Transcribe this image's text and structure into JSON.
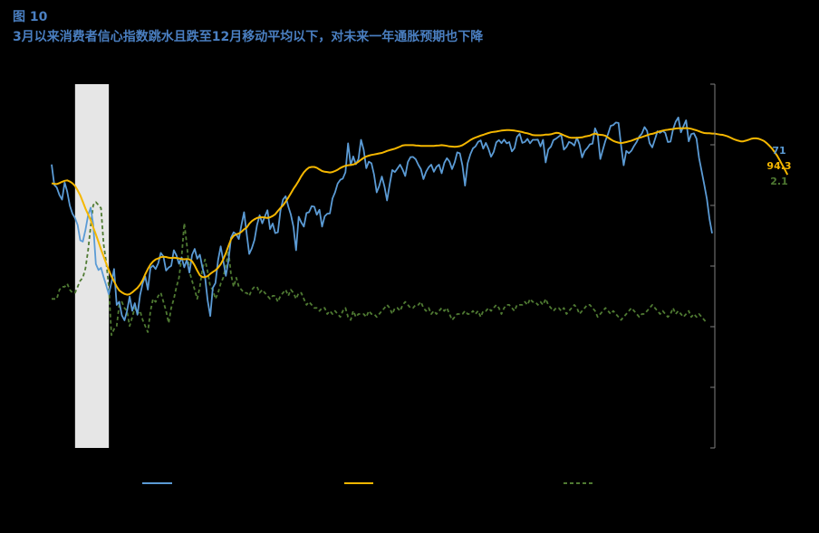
{
  "header": {
    "figure_label": "图 10",
    "title": "3月以来消费者信心指数跳水且跌至12月移动平均以下，对未来一年通胀预期也下降"
  },
  "colors": {
    "background": "#000000",
    "title": "#4a7fc1",
    "confidence": "#5b9bd5",
    "moving_avg": "#f5b700",
    "inflation": "#4f7a32",
    "shade": "#e6e6e6"
  },
  "chart_data": {
    "type": "line",
    "ylim": [
      20,
      130
    ],
    "y2lim": [
      -2,
      10
    ],
    "y_ticks_right": [
      71,
      94.3
    ],
    "y2_ticks_right": [
      2.1
    ],
    "legend_position": "bottom",
    "shaded_range": [
      9,
      22
    ],
    "series": [
      {
        "key": "confidence",
        "axis": "left",
        "end_label": "71",
        "values": [
          98.4,
          90.3,
          89.2,
          86.3,
          84.4,
          91.2,
          87.6,
          82.0,
          78.8,
          77.1,
          74.3,
          68.2,
          67.7,
          72.3,
          78.1,
          81.2,
          74.5,
          58.8,
          56.4,
          57.3,
          53.6,
          50.2,
          46.8,
          51.3,
          56.8,
          42.5,
          43.8,
          38.4,
          36.4,
          40.1,
          45.8,
          40.2,
          43.2,
          38.6,
          46.4,
          51.1,
          53.8,
          48.6,
          57.3,
          58.2,
          56.8,
          59.1,
          63.2,
          61.8,
          56.2,
          57.4,
          58.1,
          64.3,
          62.2,
          58.9,
          61.4,
          57.5,
          60.5,
          55.4,
          62.4,
          64.8,
          60.9,
          62.5,
          57.3,
          53.7,
          44.3,
          38.1,
          49.3,
          51.2,
          60.3,
          65.8,
          60.2,
          54.1,
          60.2,
          69.3,
          71.4,
          70.6,
          68.7,
          74.3,
          79.4,
          70.8,
          62.8,
          65.1,
          68.4,
          74.3,
          78.2,
          75.0,
          77.7,
          80.2,
          72.7,
          74.9,
          71.1,
          71.4,
          80.1,
          84.4,
          85.8,
          81.7,
          78.5,
          73.6,
          64.3,
          77.6,
          75.4,
          73.7,
          79.1,
          79.4,
          81.8,
          81.6,
          78.4,
          80.4,
          73.7,
          77.8,
          78.8,
          78.9,
          84.9,
          87.3,
          90.8,
          92.3,
          92.8,
          95.3,
          106.8,
          98.1,
          101.6,
          98.5,
          100.6,
          108.2,
          104.3,
          96.9,
          99.5,
          98.9,
          94.3,
          87.3,
          89.9,
          93.6,
          89.6,
          84.1,
          90.4,
          96.2,
          95.4,
          96.8,
          98.3,
          96.3,
          93.8,
          99.4,
          101.3,
          101.4,
          100.5,
          98.3,
          96.5,
          92.6,
          95.5,
          97.3,
          98.3,
          95.5,
          97.5,
          98.3,
          94.9,
          99.0,
          100.9,
          99.6,
          96.6,
          99.3,
          103.2,
          102.8,
          97.9,
          90.0,
          98.9,
          102.4,
          104.8,
          105.6,
          107.4,
          108.0,
          104.7,
          107.0,
          104.6,
          101.5,
          103.4,
          107.2,
          108.1,
          106.9,
          108.3,
          106.8,
          107.3,
          103.6,
          104.9,
          109.4,
          110.6,
          107.0,
          107.4,
          108.6,
          106.8,
          108.2,
          108.2,
          108.3,
          105.6,
          108.2,
          99.2,
          104.4,
          105.5,
          108.1,
          108.7,
          109.5,
          110.2,
          104.3,
          105.4,
          107.4,
          106.9,
          105.9,
          109.1,
          106.4,
          101.2,
          103.8,
          104.9,
          106.4,
          106.7,
          112.8,
          110.4,
          100.6,
          104.4,
          107.9,
          110.6,
          113.8,
          114.1,
          115.1,
          114.9,
          106.1,
          98.1,
          103.8,
          102.9,
          103.9,
          105.8,
          107.4,
          109.5,
          110.7,
          113.3,
          111.8,
          106.8,
          105.2,
          108.4,
          111.6,
          111.0,
          111.7,
          111.0,
          107.3,
          107.5,
          112.4,
          115.4,
          117.1,
          111.2,
          113.6,
          116.0,
          107.6,
          110.5,
          110.8,
          108.7,
          101.0,
          95.7,
          90.3,
          84.6,
          76.8,
          71.0
        ],
        "values_note_only": ""
      },
      {
        "key": "moving_avg",
        "axis": "left",
        "end_label": "94.3",
        "values": [
          90.9,
          90.7,
          90.6,
          91.0,
          91.5,
          91.9,
          92.1,
          91.6,
          90.9,
          89.9,
          88.1,
          86.1,
          83.6,
          80.9,
          78.6,
          76.2,
          73.4,
          70.6,
          67.6,
          64.6,
          61.8,
          58.9,
          56.4,
          53.9,
          51.9,
          49.8,
          48.3,
          47.5,
          46.9,
          46.6,
          46.8,
          47.5,
          48.4,
          49.3,
          50.6,
          52.4,
          54.7,
          56.8,
          58.6,
          59.8,
          60.6,
          61.0,
          61.5,
          61.7,
          61.6,
          61.3,
          61.2,
          61.3,
          61.2,
          61.0,
          60.8,
          60.7,
          60.8,
          60.6,
          59.9,
          58.2,
          56.2,
          54.3,
          53.6,
          53.6,
          54.0,
          54.9,
          55.6,
          56.3,
          57.3,
          58.7,
          60.6,
          63.1,
          66.0,
          68.6,
          70.0,
          70.6,
          70.9,
          71.6,
          72.6,
          73.3,
          74.8,
          75.9,
          76.6,
          77.1,
          77.4,
          77.4,
          77.3,
          77.1,
          77.4,
          77.9,
          78.6,
          79.9,
          81.1,
          82.1,
          83.6,
          85.2,
          86.9,
          88.7,
          90.2,
          91.9,
          93.7,
          95.3,
          96.4,
          97.2,
          97.4,
          97.4,
          97.1,
          96.4,
          95.8,
          95.5,
          95.4,
          95.2,
          95.4,
          95.8,
          96.3,
          97.0,
          97.5,
          97.9,
          98.1,
          98.2,
          98.4,
          98.8,
          99.5,
          100.3,
          101.0,
          101.6,
          101.9,
          102.2,
          102.4,
          102.6,
          102.8,
          103.0,
          103.4,
          103.8,
          104.1,
          104.4,
          104.7,
          105.1,
          105.5,
          106.0,
          106.1,
          106.1,
          106.1,
          106.1,
          106.0,
          105.9,
          105.8,
          105.8,
          105.8,
          105.8,
          105.8,
          105.8,
          105.9,
          106.0,
          106.1,
          106.0,
          105.8,
          105.6,
          105.5,
          105.4,
          105.5,
          105.7,
          106.1,
          106.7,
          107.4,
          108.1,
          108.7,
          109.1,
          109.5,
          109.9,
          110.2,
          110.6,
          110.9,
          111.2,
          111.4,
          111.5,
          111.7,
          111.9,
          112.0,
          112.1,
          112.1,
          112.0,
          111.9,
          111.7,
          111.5,
          111.3,
          111.0,
          110.8,
          110.5,
          110.1,
          110.0,
          110.0,
          110.0,
          110.1,
          110.3,
          110.3,
          110.4,
          110.7,
          111.0,
          110.9,
          110.5,
          110.0,
          109.6,
          109.2,
          109.0,
          109.0,
          109.0,
          109.1,
          109.2,
          109.5,
          109.7,
          109.9,
          110.4,
          110.7,
          110.3,
          110.2,
          110.1,
          109.8,
          109.1,
          108.4,
          107.8,
          107.4,
          107.1,
          106.9,
          107.1,
          107.3,
          107.6,
          107.9,
          108.3,
          108.7,
          109.0,
          109.3,
          109.7,
          110.0,
          110.4,
          110.6,
          110.9,
          111.3,
          111.6,
          111.9,
          112.1,
          112.2,
          112.4,
          112.5,
          112.7,
          112.8,
          112.8,
          112.8,
          112.9,
          112.8,
          112.6,
          112.3,
          112.0,
          111.6,
          111.2,
          110.9,
          110.8,
          110.8,
          110.7,
          110.7,
          110.5,
          110.3,
          110.2,
          109.9,
          109.6,
          109.1,
          108.6,
          108.2,
          107.9,
          107.6,
          107.6,
          107.9,
          108.2,
          108.6,
          108.8,
          108.8,
          108.6,
          108.2,
          107.7,
          106.9,
          105.9,
          104.8,
          103.4,
          101.9,
          100.1,
          98.2,
          96.3,
          94.3
        ],
        "values_note_only": ""
      },
      {
        "key": "inflation",
        "axis": "right",
        "end_label": "2.1",
        "values": [
          2.9,
          2.9,
          2.9,
          3.2,
          3.3,
          3.3,
          3.4,
          3.2,
          3.1,
          3.1,
          3.3,
          3.5,
          3.6,
          3.9,
          4.5,
          5.3,
          6.0,
          6.1,
          6.0,
          5.9,
          4.7,
          4.1,
          3.3,
          1.7,
          1.9,
          2.0,
          2.7,
          2.8,
          2.6,
          2.5,
          2.0,
          2.3,
          2.6,
          2.4,
          2.5,
          2.2,
          2.0,
          1.8,
          2.5,
          2.9,
          2.8,
          3.0,
          3.1,
          2.8,
          2.5,
          2.1,
          2.6,
          2.9,
          3.3,
          3.6,
          4.3,
          5.4,
          4.7,
          3.8,
          3.5,
          3.2,
          2.9,
          3.3,
          3.9,
          4.2,
          3.8,
          3.3,
          3.2,
          2.9,
          3.1,
          3.4,
          3.6,
          4.0,
          4.5,
          3.7,
          3.3,
          3.6,
          3.3,
          3.2,
          3.1,
          3.1,
          3.0,
          3.2,
          3.3,
          3.3,
          3.1,
          3.2,
          3.1,
          3.0,
          2.9,
          3.0,
          3.0,
          2.8,
          3.0,
          3.1,
          3.2,
          3.0,
          3.2,
          3.1,
          2.9,
          3.1,
          3.1,
          2.9,
          2.7,
          2.8,
          2.7,
          2.6,
          2.6,
          2.5,
          2.6,
          2.6,
          2.4,
          2.5,
          2.4,
          2.5,
          2.4,
          2.3,
          2.5,
          2.6,
          2.3,
          2.2,
          2.5,
          2.3,
          2.4,
          2.4,
          2.4,
          2.3,
          2.5,
          2.4,
          2.4,
          2.3,
          2.4,
          2.5,
          2.6,
          2.7,
          2.6,
          2.4,
          2.6,
          2.6,
          2.5,
          2.7,
          2.8,
          2.7,
          2.6,
          2.6,
          2.7,
          2.7,
          2.8,
          2.6,
          2.5,
          2.6,
          2.4,
          2.5,
          2.4,
          2.5,
          2.6,
          2.5,
          2.6,
          2.4,
          2.2,
          2.3,
          2.4,
          2.4,
          2.4,
          2.5,
          2.4,
          2.4,
          2.5,
          2.4,
          2.5,
          2.3,
          2.5,
          2.5,
          2.6,
          2.5,
          2.6,
          2.7,
          2.6,
          2.4,
          2.6,
          2.7,
          2.7,
          2.6,
          2.5,
          2.7,
          2.7,
          2.7,
          2.8,
          2.7,
          2.9,
          2.8,
          2.8,
          2.7,
          2.8,
          2.7,
          2.9,
          2.7,
          2.6,
          2.5,
          2.6,
          2.6,
          2.5,
          2.6,
          2.4,
          2.5,
          2.6,
          2.7,
          2.6,
          2.4,
          2.5,
          2.6,
          2.7,
          2.7,
          2.6,
          2.5,
          2.3,
          2.4,
          2.5,
          2.6,
          2.5,
          2.4,
          2.5,
          2.4,
          2.3,
          2.2,
          2.3,
          2.4,
          2.5,
          2.6,
          2.5,
          2.4,
          2.3,
          2.4,
          2.4,
          2.5,
          2.6,
          2.7,
          2.6,
          2.5,
          2.4,
          2.5,
          2.4,
          2.3,
          2.4,
          2.6,
          2.4,
          2.5,
          2.4,
          2.3,
          2.4,
          2.5,
          2.3,
          2.4,
          2.3,
          2.4,
          2.3,
          2.2,
          2.1
        ],
        "values_note_only": ""
      }
    ]
  }
}
